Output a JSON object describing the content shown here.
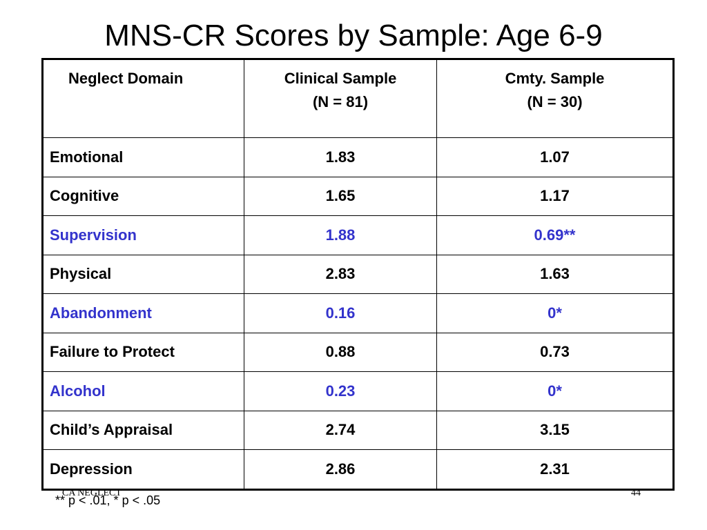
{
  "slide": {
    "title": "MNS-CR Scores by Sample: Age 6-9",
    "footer_left": "CA NEGLECT",
    "page_number": "44",
    "footnote": "** p < .01, * p < .05"
  },
  "table": {
    "headers": {
      "domain": "Neglect Domain",
      "clinical_line1": "Clinical Sample",
      "clinical_line2": "(N = 81)",
      "community_line1": "Cmty. Sample",
      "community_line2": "(N = 30)"
    },
    "rows": [
      {
        "domain": "Emotional",
        "clinical": "1.83",
        "community": "1.07",
        "highlight": false
      },
      {
        "domain": "Cognitive",
        "clinical": "1.65",
        "community": "1.17",
        "highlight": false
      },
      {
        "domain": "Supervision",
        "clinical": "1.88",
        "community": "0.69**",
        "highlight": true
      },
      {
        "domain": "Physical",
        "clinical": "2.83",
        "community": "1.63",
        "highlight": false
      },
      {
        "domain": "Abandonment",
        "clinical": "0.16",
        "community": "0*",
        "highlight": true
      },
      {
        "domain": "Failure to Protect",
        "clinical": "0.88",
        "community": "0.73",
        "highlight": false
      },
      {
        "domain": "Alcohol",
        "clinical": "0.23",
        "community": "0*",
        "highlight": true
      },
      {
        "domain": "Child’s Appraisal",
        "clinical": "2.74",
        "community": "3.15",
        "highlight": false
      },
      {
        "domain": "Depression",
        "clinical": "2.86",
        "community": "2.31",
        "highlight": false
      }
    ]
  },
  "colors": {
    "highlight_text": "#3333cc",
    "normal_text": "#000000",
    "background": "#ffffff"
  }
}
